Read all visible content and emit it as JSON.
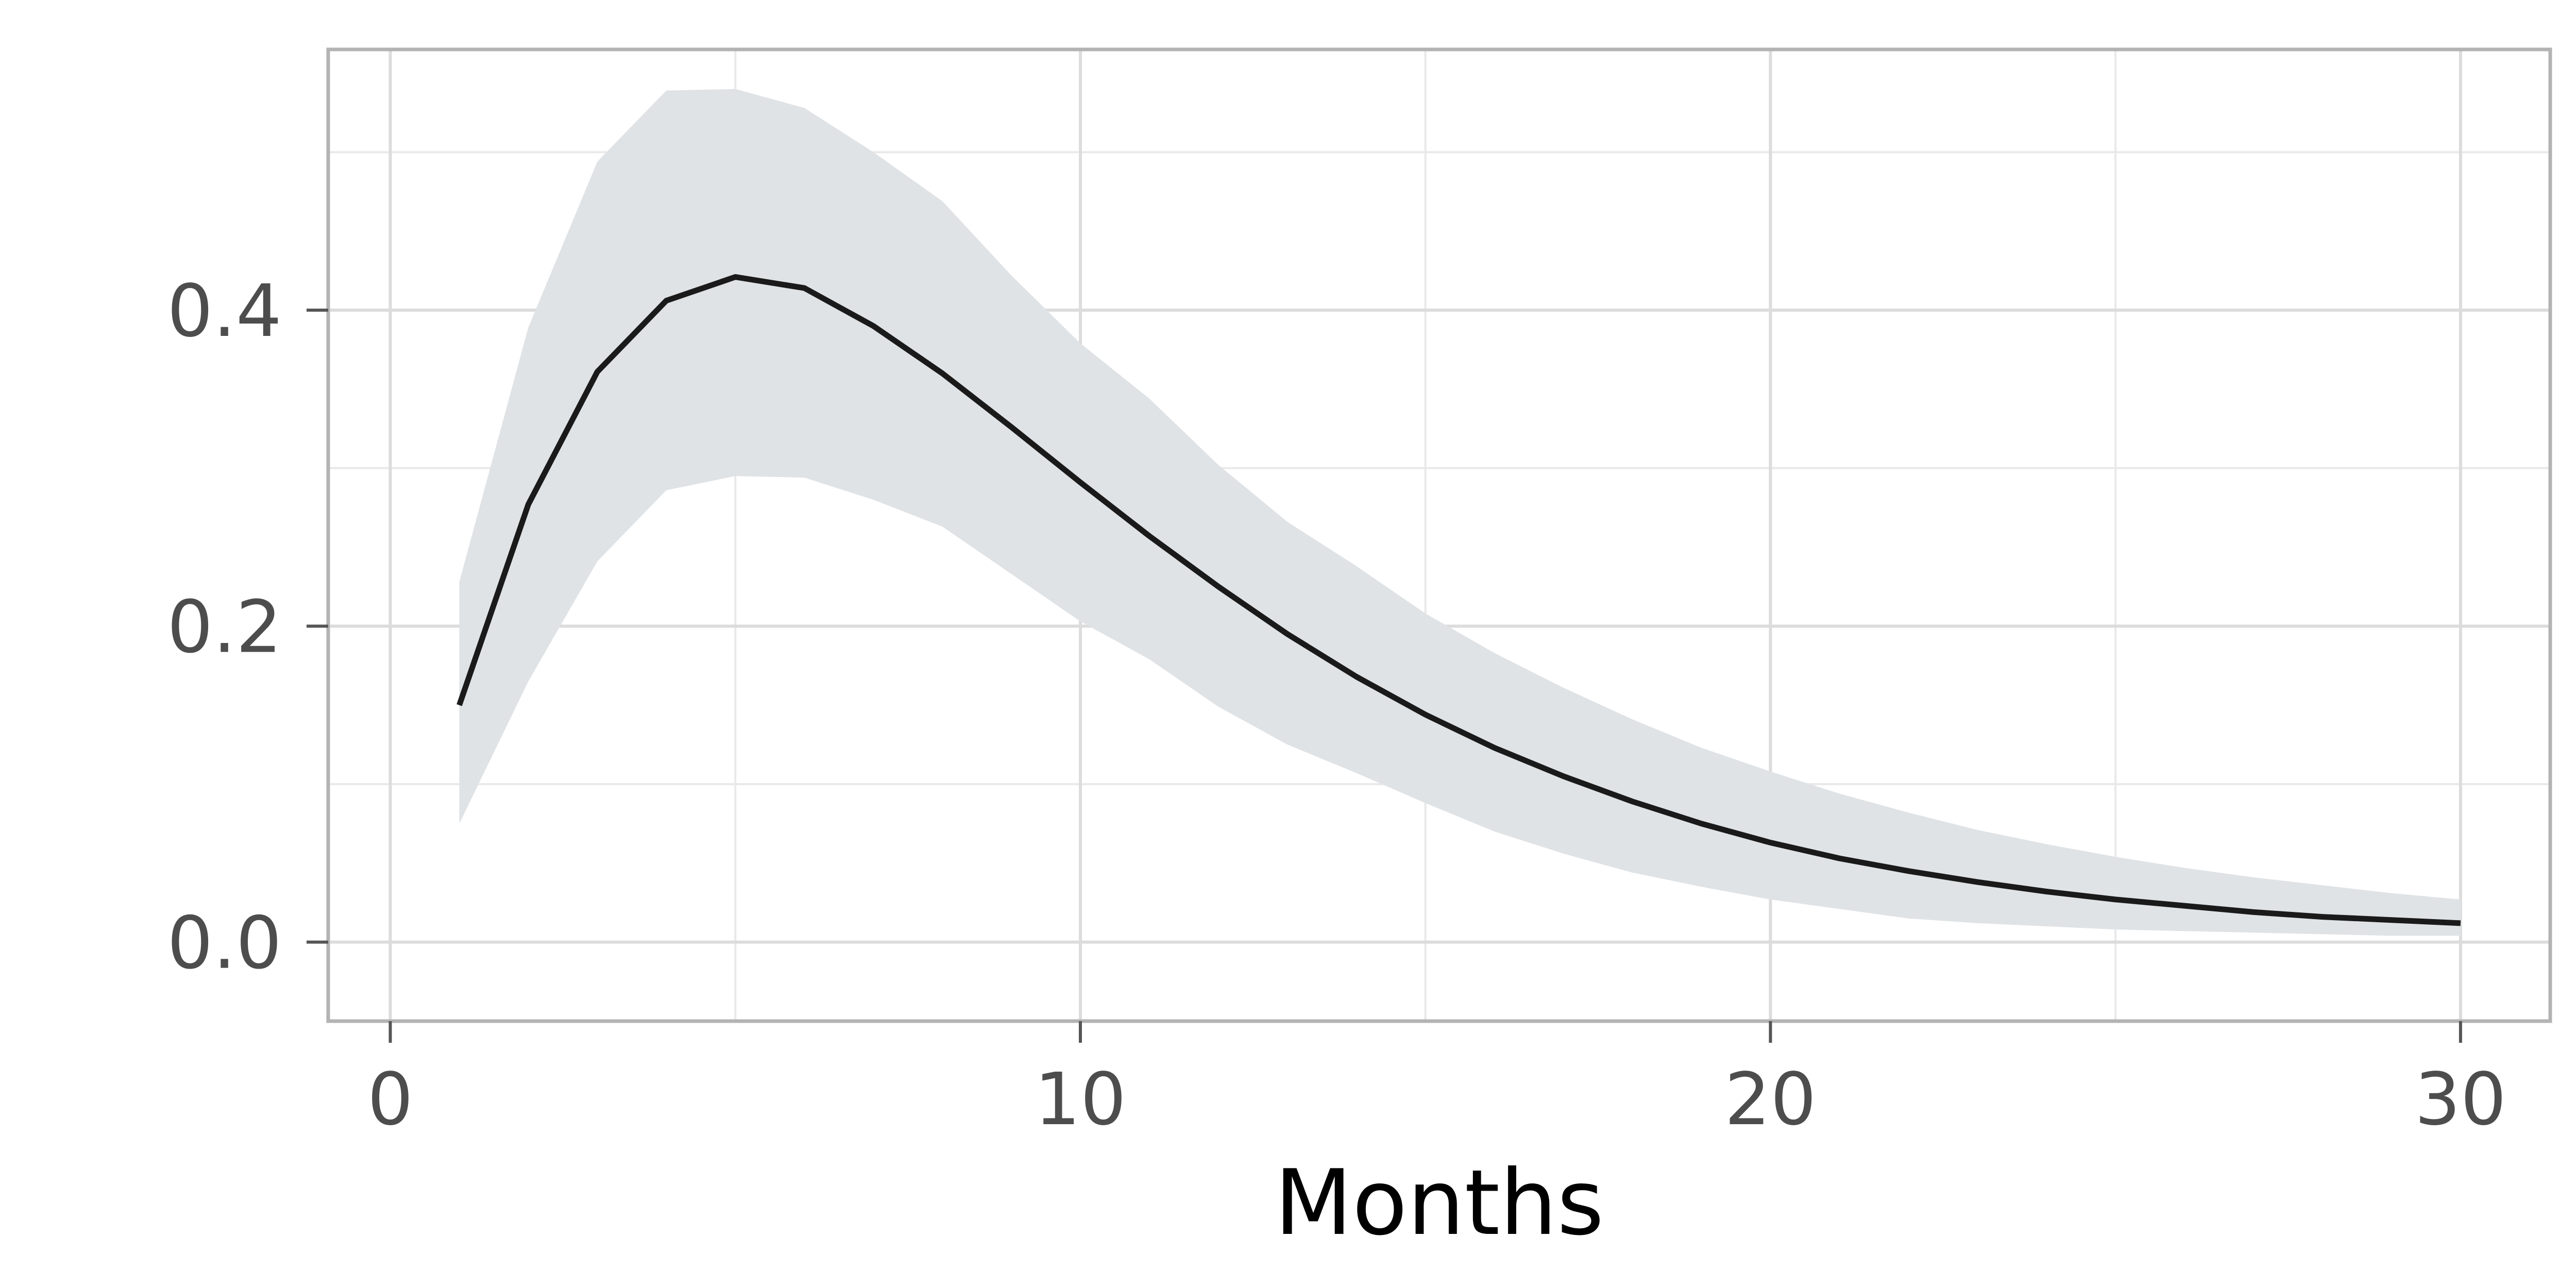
{
  "chart_data": {
    "type": "line",
    "title": "",
    "xlabel": "Months",
    "ylabel": "",
    "xlim": [
      -0.9,
      31.3
    ],
    "ylim": [
      -0.05,
      0.565
    ],
    "x_ticks": [
      0,
      10,
      20,
      30
    ],
    "x_tick_labels": [
      "0",
      "10",
      "20",
      "30"
    ],
    "y_ticks": [
      0.0,
      0.2,
      0.4
    ],
    "y_tick_labels": [
      "0.0",
      "0.2",
      "0.4"
    ],
    "y_minor_grid": [
      0.1,
      0.3,
      0.5
    ],
    "x_minor_grid": [
      5,
      15,
      25
    ],
    "grid": true,
    "legend": "none",
    "x": [
      1,
      2,
      3,
      4,
      5,
      6,
      7,
      8,
      9,
      10,
      11,
      12,
      13,
      14,
      15,
      16,
      17,
      18,
      19,
      20,
      21,
      22,
      23,
      24,
      25,
      26,
      27,
      28,
      29,
      30
    ],
    "series": [
      {
        "values": [
          0.15,
          0.277,
          0.361,
          0.406,
          0.421,
          0.414,
          0.39,
          0.36,
          0.326,
          0.291,
          0.257,
          0.225,
          0.195,
          0.168,
          0.144,
          0.123,
          0.105,
          0.089,
          0.075,
          0.063,
          0.053,
          0.045,
          0.038,
          0.032,
          0.027,
          0.023,
          0.019,
          0.016,
          0.014,
          0.012
        ],
        "lower": [
          0.075,
          0.165,
          0.241,
          0.286,
          0.295,
          0.294,
          0.28,
          0.263,
          0.233,
          0.203,
          0.179,
          0.149,
          0.125,
          0.107,
          0.088,
          0.07,
          0.056,
          0.044,
          0.035,
          0.027,
          0.021,
          0.015,
          0.012,
          0.01,
          0.008,
          0.007,
          0.006,
          0.005,
          0.004,
          0.004
        ],
        "upper": [
          0.228,
          0.389,
          0.494,
          0.539,
          0.54,
          0.528,
          0.5,
          0.469,
          0.422,
          0.379,
          0.344,
          0.302,
          0.266,
          0.238,
          0.208,
          0.183,
          0.161,
          0.141,
          0.123,
          0.108,
          0.094,
          0.082,
          0.071,
          0.062,
          0.054,
          0.047,
          0.041,
          0.036,
          0.031,
          0.027
        ]
      }
    ],
    "colors": {
      "line": "#1a1a1a",
      "band": "#dfe3e6",
      "frame": "#b3b3b3",
      "grid_major": "#dcdcdc",
      "grid_minor": "#e9e9e9",
      "tick": "#555555",
      "background": "#ffffff"
    }
  }
}
